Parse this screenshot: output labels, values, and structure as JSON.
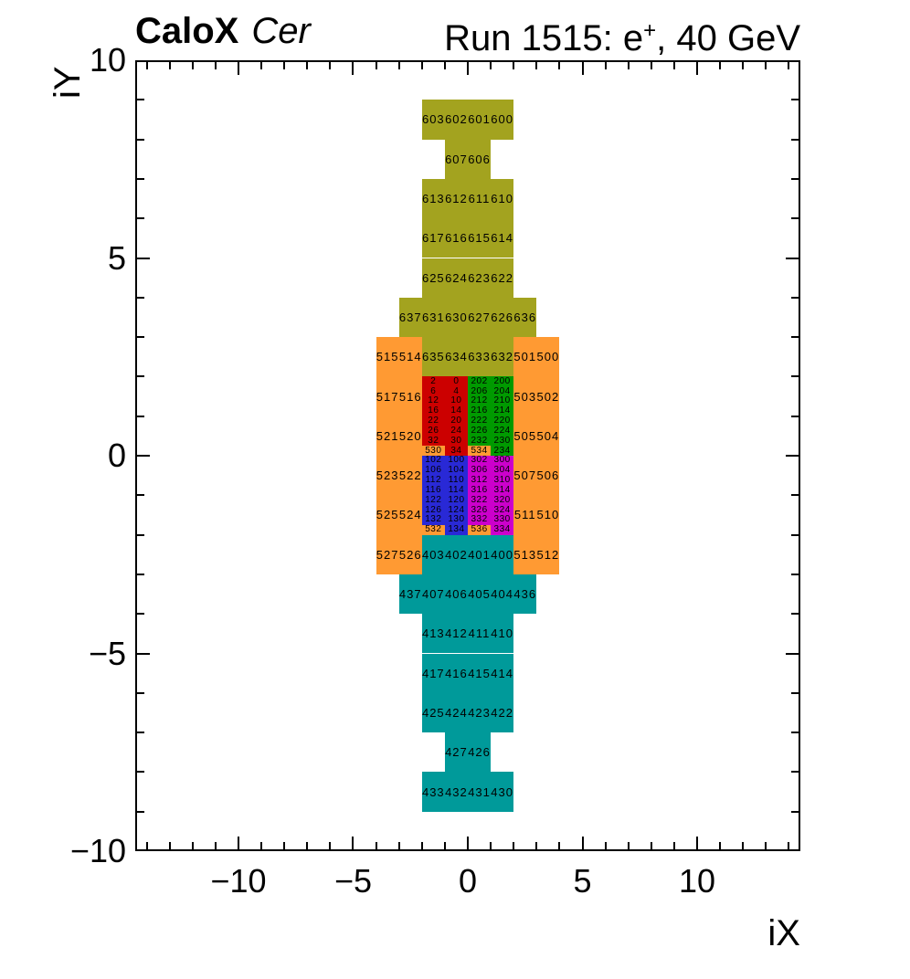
{
  "header": {
    "title_left_bold": "CaloX",
    "title_left_italic": "Cer",
    "title_right_prefix": "Run 1515: e",
    "title_right_sup": "+",
    "title_right_suffix": ", 40 GeV"
  },
  "chart_data": {
    "type": "heatmap",
    "title": "CaloX Cer — Run 1515: e+, 40 GeV channel map",
    "xlabel": "iX",
    "ylabel": "iY",
    "xlim": [
      -14.5,
      14.5
    ],
    "ylim": [
      -10,
      10
    ],
    "grid": false,
    "xticks": {
      "values": [
        -10,
        -5,
        0,
        5,
        10
      ],
      "labels": [
        "−10",
        "−5",
        "0",
        "5",
        "10"
      ]
    },
    "yticks": {
      "values": [
        10,
        5,
        0,
        -5,
        -10
      ],
      "labels": [
        "10",
        "5",
        "0",
        "−5",
        "−10"
      ]
    },
    "minor_tick_step": 1,
    "cell_note": "cells are [channel_id, x_left, y_top, width, height] in axis units",
    "groups": [
      {
        "name": "coarse-top-olive",
        "color": "#a3a31f",
        "cells": [
          [
            603,
            -2,
            9,
            1,
            1
          ],
          [
            602,
            -1,
            9,
            1,
            1
          ],
          [
            601,
            0,
            9,
            1,
            1
          ],
          [
            600,
            1,
            9,
            1,
            1
          ],
          [
            607,
            -1,
            8,
            1,
            1
          ],
          [
            606,
            0,
            8,
            1,
            1
          ],
          [
            613,
            -2,
            7,
            1,
            1
          ],
          [
            612,
            -1,
            7,
            1,
            1
          ],
          [
            611,
            0,
            7,
            1,
            1
          ],
          [
            610,
            1,
            7,
            1,
            1
          ],
          [
            617,
            -2,
            6,
            1,
            1
          ],
          [
            616,
            -1,
            6,
            1,
            1
          ],
          [
            615,
            0,
            6,
            1,
            1
          ],
          [
            614,
            1,
            6,
            1,
            1
          ],
          [
            625,
            -2,
            5,
            1,
            1
          ],
          [
            624,
            -1,
            5,
            1,
            1
          ],
          [
            623,
            0,
            5,
            1,
            1
          ],
          [
            622,
            1,
            5,
            1,
            1
          ],
          [
            637,
            -3,
            4,
            1,
            1
          ],
          [
            631,
            -2,
            4,
            1,
            1
          ],
          [
            630,
            -1,
            4,
            1,
            1
          ],
          [
            627,
            0,
            4,
            1,
            1
          ],
          [
            626,
            1,
            4,
            1,
            1
          ],
          [
            636,
            2,
            4,
            1,
            1
          ],
          [
            635,
            -2,
            3,
            1,
            1
          ],
          [
            634,
            -1,
            3,
            1,
            1
          ],
          [
            633,
            0,
            3,
            1,
            1
          ],
          [
            632,
            1,
            3,
            1,
            1
          ]
        ]
      },
      {
        "name": "side-orange",
        "color": "#ff9a33",
        "cells": [
          [
            515,
            -4,
            3,
            1,
            1
          ],
          [
            514,
            -3,
            3,
            1,
            1
          ],
          [
            501,
            2,
            3,
            1,
            1
          ],
          [
            500,
            3,
            3,
            1,
            1
          ],
          [
            517,
            -4,
            2,
            1,
            1
          ],
          [
            516,
            -3,
            2,
            1,
            1
          ],
          [
            503,
            2,
            2,
            1,
            1
          ],
          [
            502,
            3,
            2,
            1,
            1
          ],
          [
            521,
            -4,
            1,
            1,
            1
          ],
          [
            520,
            -3,
            1,
            1,
            1
          ],
          [
            505,
            2,
            1,
            1,
            1
          ],
          [
            504,
            3,
            1,
            1,
            1
          ],
          [
            523,
            -4,
            0,
            1,
            1
          ],
          [
            522,
            -3,
            0,
            1,
            1
          ],
          [
            507,
            2,
            0,
            1,
            1
          ],
          [
            506,
            3,
            0,
            1,
            1
          ],
          [
            525,
            -4,
            -1,
            1,
            1
          ],
          [
            524,
            -3,
            -1,
            1,
            1
          ],
          [
            511,
            2,
            -1,
            1,
            1
          ],
          [
            510,
            3,
            -1,
            1,
            1
          ],
          [
            527,
            -4,
            -2,
            1,
            1
          ],
          [
            526,
            -3,
            -2,
            1,
            1
          ],
          [
            513,
            2,
            -2,
            1,
            1
          ],
          [
            512,
            3,
            -2,
            1,
            1
          ],
          [
            530,
            -2,
            0.25,
            1,
            0.25
          ],
          [
            534,
            0,
            0.25,
            1,
            0.25
          ],
          [
            532,
            -2,
            -1.75,
            1,
            0.25
          ],
          [
            536,
            0,
            -1.75,
            1,
            0.25
          ]
        ]
      },
      {
        "name": "core-red",
        "color": "#cc0000",
        "cells": [
          [
            2,
            -2,
            2,
            1,
            0.25
          ],
          [
            0,
            -1,
            2,
            1,
            0.25
          ],
          [
            6,
            -2,
            1.75,
            1,
            0.25
          ],
          [
            4,
            -1,
            1.75,
            1,
            0.25
          ],
          [
            12,
            -2,
            1.5,
            1,
            0.25
          ],
          [
            10,
            -1,
            1.5,
            1,
            0.25
          ],
          [
            16,
            -2,
            1.25,
            1,
            0.25
          ],
          [
            14,
            -1,
            1.25,
            1,
            0.25
          ],
          [
            22,
            -2,
            1,
            1,
            0.25
          ],
          [
            20,
            -1,
            1,
            1,
            0.25
          ],
          [
            26,
            -2,
            0.75,
            1,
            0.25
          ],
          [
            24,
            -1,
            0.75,
            1,
            0.25
          ],
          [
            32,
            -2,
            0.5,
            1,
            0.25
          ],
          [
            30,
            -1,
            0.5,
            1,
            0.25
          ],
          [
            34,
            -1,
            0.25,
            1,
            0.25
          ]
        ]
      },
      {
        "name": "core-green",
        "color": "#009a00",
        "cells": [
          [
            202,
            0,
            2,
            1,
            0.25
          ],
          [
            200,
            1,
            2,
            1,
            0.25
          ],
          [
            206,
            0,
            1.75,
            1,
            0.25
          ],
          [
            204,
            1,
            1.75,
            1,
            0.25
          ],
          [
            212,
            0,
            1.5,
            1,
            0.25
          ],
          [
            210,
            1,
            1.5,
            1,
            0.25
          ],
          [
            216,
            0,
            1.25,
            1,
            0.25
          ],
          [
            214,
            1,
            1.25,
            1,
            0.25
          ],
          [
            222,
            0,
            1,
            1,
            0.25
          ],
          [
            220,
            1,
            1,
            1,
            0.25
          ],
          [
            226,
            0,
            0.75,
            1,
            0.25
          ],
          [
            224,
            1,
            0.75,
            1,
            0.25
          ],
          [
            232,
            0,
            0.5,
            1,
            0.25
          ],
          [
            230,
            1,
            0.5,
            1,
            0.25
          ],
          [
            234,
            1,
            0.25,
            1,
            0.25
          ]
        ]
      },
      {
        "name": "core-blue",
        "color": "#2929d6",
        "cells": [
          [
            102,
            -2,
            0,
            1,
            0.25
          ],
          [
            100,
            -1,
            0,
            1,
            0.25
          ],
          [
            106,
            -2,
            -0.25,
            1,
            0.25
          ],
          [
            104,
            -1,
            -0.25,
            1,
            0.25
          ],
          [
            112,
            -2,
            -0.5,
            1,
            0.25
          ],
          [
            110,
            -1,
            -0.5,
            1,
            0.25
          ],
          [
            116,
            -2,
            -0.75,
            1,
            0.25
          ],
          [
            114,
            -1,
            -0.75,
            1,
            0.25
          ],
          [
            122,
            -2,
            -1,
            1,
            0.25
          ],
          [
            120,
            -1,
            -1,
            1,
            0.25
          ],
          [
            126,
            -2,
            -1.25,
            1,
            0.25
          ],
          [
            124,
            -1,
            -1.25,
            1,
            0.25
          ],
          [
            132,
            -2,
            -1.5,
            1,
            0.25
          ],
          [
            130,
            -1,
            -1.5,
            1,
            0.25
          ],
          [
            134,
            -1,
            -1.75,
            1,
            0.25
          ]
        ]
      },
      {
        "name": "core-magenta",
        "color": "#cc00cc",
        "cells": [
          [
            302,
            0,
            0,
            1,
            0.25
          ],
          [
            300,
            1,
            0,
            1,
            0.25
          ],
          [
            306,
            0,
            -0.25,
            1,
            0.25
          ],
          [
            304,
            1,
            -0.25,
            1,
            0.25
          ],
          [
            312,
            0,
            -0.5,
            1,
            0.25
          ],
          [
            310,
            1,
            -0.5,
            1,
            0.25
          ],
          [
            316,
            0,
            -0.75,
            1,
            0.25
          ],
          [
            314,
            1,
            -0.75,
            1,
            0.25
          ],
          [
            322,
            0,
            -1,
            1,
            0.25
          ],
          [
            320,
            1,
            -1,
            1,
            0.25
          ],
          [
            326,
            0,
            -1.25,
            1,
            0.25
          ],
          [
            324,
            1,
            -1.25,
            1,
            0.25
          ],
          [
            332,
            0,
            -1.5,
            1,
            0.25
          ],
          [
            330,
            1,
            -1.5,
            1,
            0.25
          ],
          [
            334,
            1,
            -1.75,
            1,
            0.25
          ]
        ]
      },
      {
        "name": "coarse-bottom-teal",
        "color": "#009a9a",
        "cells": [
          [
            403,
            -2,
            -2,
            1,
            1
          ],
          [
            402,
            -1,
            -2,
            1,
            1
          ],
          [
            401,
            0,
            -2,
            1,
            1
          ],
          [
            400,
            1,
            -2,
            1,
            1
          ],
          [
            437,
            -3,
            -3,
            1,
            1
          ],
          [
            407,
            -2,
            -3,
            1,
            1
          ],
          [
            406,
            -1,
            -3,
            1,
            1
          ],
          [
            405,
            0,
            -3,
            1,
            1
          ],
          [
            404,
            1,
            -3,
            1,
            1
          ],
          [
            436,
            2,
            -3,
            1,
            1
          ],
          [
            413,
            -2,
            -4,
            1,
            1
          ],
          [
            412,
            -1,
            -4,
            1,
            1
          ],
          [
            411,
            0,
            -4,
            1,
            1
          ],
          [
            410,
            1,
            -4,
            1,
            1
          ],
          [
            417,
            -2,
            -5,
            1,
            1
          ],
          [
            416,
            -1,
            -5,
            1,
            1
          ],
          [
            415,
            0,
            -5,
            1,
            1
          ],
          [
            414,
            1,
            -5,
            1,
            1
          ],
          [
            425,
            -2,
            -6,
            1,
            1
          ],
          [
            424,
            -1,
            -6,
            1,
            1
          ],
          [
            423,
            0,
            -6,
            1,
            1
          ],
          [
            422,
            1,
            -6,
            1,
            1
          ],
          [
            427,
            -1,
            -7,
            1,
            1
          ],
          [
            426,
            0,
            -7,
            1,
            1
          ],
          [
            433,
            -2,
            -8,
            1,
            1
          ],
          [
            432,
            -1,
            -8,
            1,
            1
          ],
          [
            431,
            0,
            -8,
            1,
            1
          ],
          [
            430,
            1,
            -8,
            1,
            1
          ]
        ]
      }
    ]
  }
}
